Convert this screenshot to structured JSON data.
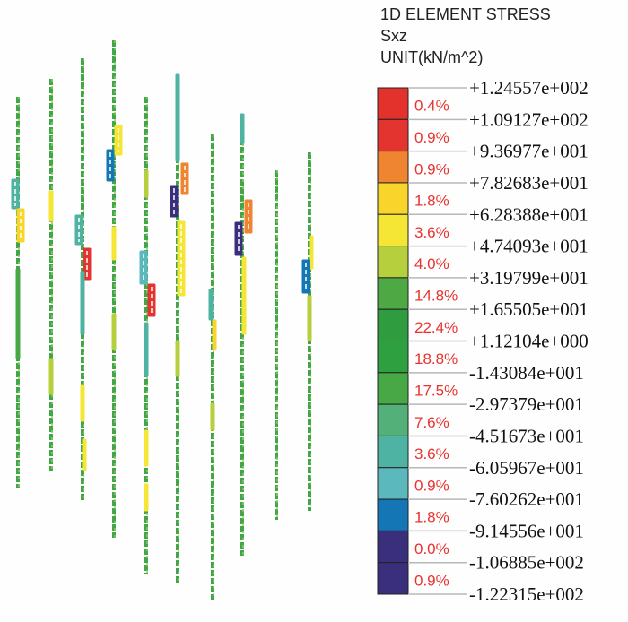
{
  "legend": {
    "title": "1D ELEMENT STRESS",
    "component": "Sxz",
    "unit": "UNIT(kN/m^2)",
    "levels": [
      "+1.24557e+002",
      "+1.09127e+002",
      "+9.36977e+001",
      "+7.82683e+001",
      "+6.28388e+001",
      "+4.74093e+001",
      "+3.19799e+001",
      "+1.65505e+001",
      "+1.12104e+000",
      "-1.43084e+001",
      "-2.97379e+001",
      "-4.51673e+001",
      "-6.05967e+001",
      "-7.60262e+001",
      "-9.14556e+001",
      "-1.06885e+002",
      "-1.22315e+002"
    ],
    "bands": [
      {
        "pct": "0.4%",
        "color": "#e3312c"
      },
      {
        "pct": "0.9%",
        "color": "#e3342f"
      },
      {
        "pct": "0.9%",
        "color": "#ef8431"
      },
      {
        "pct": "1.8%",
        "color": "#f9d42a"
      },
      {
        "pct": "3.6%",
        "color": "#f5e534"
      },
      {
        "pct": "4.0%",
        "color": "#b6cf3c"
      },
      {
        "pct": "14.8%",
        "color": "#4ea844"
      },
      {
        "pct": "22.4%",
        "color": "#2f9c3f"
      },
      {
        "pct": "18.8%",
        "color": "#2fa040"
      },
      {
        "pct": "17.5%",
        "color": "#47a845"
      },
      {
        "pct": "7.6%",
        "color": "#54b079"
      },
      {
        "pct": "3.6%",
        "color": "#4fb3a3"
      },
      {
        "pct": "0.9%",
        "color": "#5bb9bd"
      },
      {
        "pct": "1.8%",
        "color": "#1576b5"
      },
      {
        "pct": "0.0%",
        "color": "#3a2f7d"
      },
      {
        "pct": "0.9%",
        "color": "#3a2f7d"
      }
    ]
  }
}
